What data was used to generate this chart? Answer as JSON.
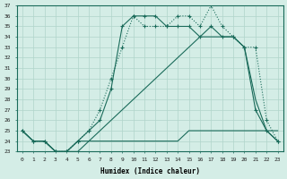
{
  "xlabel": "Humidex (Indice chaleur)",
  "hours": [
    0,
    1,
    2,
    3,
    4,
    5,
    6,
    7,
    8,
    9,
    10,
    11,
    12,
    13,
    14,
    15,
    16,
    17,
    18,
    19,
    20,
    21,
    22,
    23
  ],
  "line_dotted_markers": [
    25,
    24,
    24,
    23,
    23,
    24,
    25,
    27,
    30,
    33,
    36,
    35,
    35,
    35,
    36,
    36,
    35,
    37,
    35,
    34,
    33,
    33,
    26,
    24
  ],
  "line_solid_upper": [
    25,
    24,
    24,
    23,
    23,
    24,
    25,
    26,
    29,
    35,
    36,
    36,
    36,
    35,
    35,
    35,
    34,
    35,
    34,
    34,
    33,
    27,
    25,
    24
  ],
  "line_solid_lower": [
    25,
    24,
    24,
    23,
    23,
    24,
    24,
    25,
    26,
    27,
    28,
    29,
    30,
    31,
    32,
    33,
    34,
    34,
    34,
    34,
    33,
    28,
    25,
    24
  ],
  "line_flat": [
    25,
    24,
    24,
    23,
    23,
    23,
    24,
    24,
    24,
    24,
    24,
    24,
    24,
    24,
    24,
    25,
    25,
    25,
    25,
    25,
    25,
    25,
    25,
    25
  ],
  "ylim": [
    23,
    37
  ],
  "yticks": [
    23,
    24,
    25,
    26,
    27,
    28,
    29,
    30,
    31,
    32,
    33,
    34,
    35,
    36,
    37
  ],
  "color_lines": "#1a6b5a",
  "bg_color": "#d4ede6",
  "grid_color": "#b0d4ca"
}
